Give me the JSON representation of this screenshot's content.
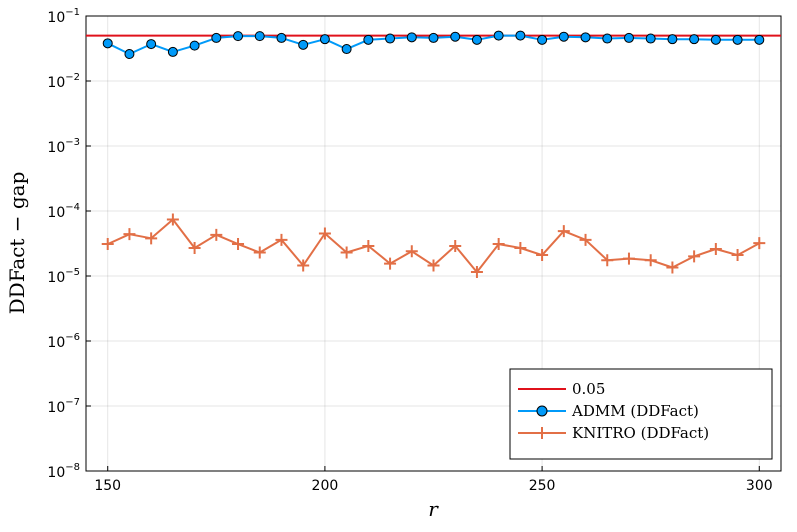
{
  "chart_data": {
    "type": "line",
    "xlabel": "r",
    "ylabel": "DDFact − gap",
    "xlim": [
      145,
      305
    ],
    "ylim": [
      1e-08,
      0.1
    ],
    "yscale": "log",
    "grid": true,
    "legend_position": "bottom-right",
    "x_ticks": [
      150,
      200,
      250,
      300
    ],
    "x_tick_labels": [
      "150",
      "200",
      "250",
      "300"
    ],
    "y_ticks": [
      1e-08,
      1e-07,
      1e-06,
      1e-05,
      0.0001,
      0.001,
      0.01,
      0.1
    ],
    "y_tick_labels": [
      {
        "base": "10",
        "exp": "−8"
      },
      {
        "base": "10",
        "exp": "−7"
      },
      {
        "base": "10",
        "exp": "−6"
      },
      {
        "base": "10",
        "exp": "−5"
      },
      {
        "base": "10",
        "exp": "−4"
      },
      {
        "base": "10",
        "exp": "−3"
      },
      {
        "base": "10",
        "exp": "−2"
      },
      {
        "base": "10",
        "exp": "−1"
      }
    ],
    "x": [
      150,
      155,
      160,
      165,
      170,
      175,
      180,
      185,
      190,
      195,
      200,
      205,
      210,
      215,
      220,
      225,
      230,
      235,
      240,
      245,
      250,
      255,
      260,
      265,
      270,
      275,
      280,
      285,
      290,
      295,
      300
    ],
    "series": [
      {
        "name": "0.05",
        "kind": "hline",
        "color": "#e0111b",
        "value": 0.05
      },
      {
        "name": "ADMM (DDFact)",
        "kind": "line-circle",
        "color": "#009af9",
        "values": [
          0.038,
          0.026,
          0.037,
          0.028,
          0.035,
          0.046,
          0.049,
          0.049,
          0.046,
          0.036,
          0.044,
          0.031,
          0.043,
          0.045,
          0.047,
          0.046,
          0.048,
          0.043,
          0.05,
          0.05,
          0.043,
          0.048,
          0.047,
          0.045,
          0.046,
          0.045,
          0.044,
          0.044,
          0.043,
          0.043,
          0.043
        ]
      },
      {
        "name": "KNITRO (DDFact)",
        "kind": "line-cross",
        "color": "#e26f46",
        "values": [
          3.1e-05,
          4.4e-05,
          3.8e-05,
          7.4e-05,
          2.7e-05,
          4.3e-05,
          3.1e-05,
          2.3e-05,
          3.6e-05,
          1.45e-05,
          4.5e-05,
          2.3e-05,
          2.9e-05,
          1.55e-05,
          2.4e-05,
          1.45e-05,
          2.9e-05,
          1.15e-05,
          3.1e-05,
          2.7e-05,
          2.1e-05,
          4.9e-05,
          3.6e-05,
          1.75e-05,
          1.85e-05,
          1.75e-05,
          1.35e-05,
          2e-05,
          2.6e-05,
          2.1e-05,
          3.2e-05
        ]
      }
    ]
  }
}
